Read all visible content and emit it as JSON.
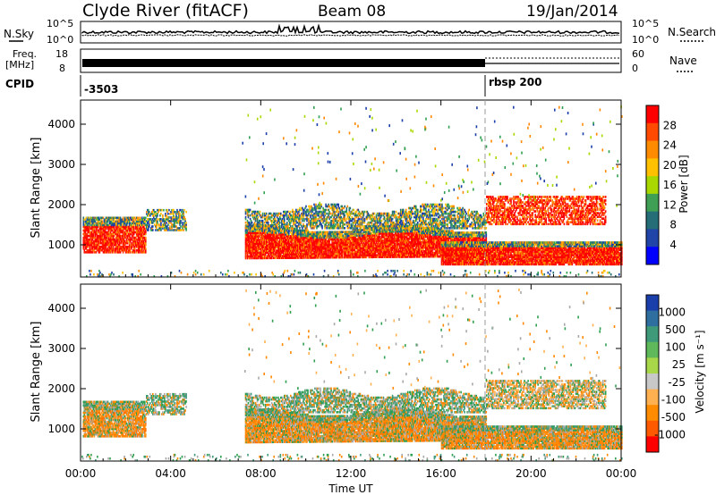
{
  "header": {
    "station": "Clyde River (fitACF)",
    "beam": "Beam 08",
    "date": "19/Jan/2014"
  },
  "top_panels": {
    "nsky_label": "N.Sky",
    "nsky_ticks": [
      "10^5",
      "10^0"
    ],
    "nsearch_label": "N.Search",
    "freq_label_line1": "Freq.",
    "freq_label_line2": "[MHz]",
    "freq_ticks": [
      "18",
      "8"
    ],
    "nave_label": "Nave",
    "nave_ticks": [
      "60",
      "0"
    ],
    "cpid_label": "CPID",
    "cpid_values": [
      "-3503",
      "rbsp 200"
    ]
  },
  "colors": {
    "scatter_red": "#ff0000",
    "scatter_orange": "#ff8800",
    "scatter_green": "#2e9f4f",
    "scatter_blue": "#1b3faa",
    "ground_gray": "#a8a8a8"
  },
  "chart_data": [
    {
      "type": "heatmap",
      "panel": "power",
      "ylabel": "Slant Range [km]",
      "y_ticks": [
        "1000",
        "2000",
        "3000",
        "4000"
      ],
      "ylim": [
        200,
        4600
      ],
      "x_ticks": [
        "00:00",
        "04:00",
        "08:00",
        "12:00",
        "16:00",
        "20:00",
        "00:00"
      ],
      "xlim_hours": [
        0,
        24
      ],
      "colorbar": {
        "label": "Power [dB]",
        "ticks": [
          "28",
          "24",
          "20",
          "16",
          "12",
          "8",
          "4"
        ],
        "colors": [
          "#ff0000",
          "#ff4a00",
          "#ff8c00",
          "#ffc000",
          "#a8d800",
          "#3f9f55",
          "#256e77",
          "#2044a8",
          "#0000ff"
        ]
      }
    },
    {
      "type": "heatmap",
      "panel": "velocity",
      "ylabel": "Slant Range [km]",
      "y_ticks": [
        "1000",
        "2000",
        "3000",
        "4000"
      ],
      "ylim": [
        200,
        4600
      ],
      "x_ticks": [
        "00:00",
        "04:00",
        "08:00",
        "12:00",
        "16:00",
        "20:00",
        "00:00"
      ],
      "xlim_hours": [
        0,
        24
      ],
      "xlabel": "Time UT",
      "colorbar": {
        "label": "Velocity [m s⁻¹]",
        "ticks": [
          "1000",
          "500",
          "100",
          "25",
          "-25",
          "-100",
          "-500",
          "-1000"
        ],
        "colors": [
          "#1b3faa",
          "#2f6fa0",
          "#3f9a7a",
          "#5fb85a",
          "#a8d84a",
          "#c8c8c8",
          "#ffb050",
          "#ff8c00",
          "#ff5a00",
          "#ff0000"
        ]
      }
    }
  ]
}
